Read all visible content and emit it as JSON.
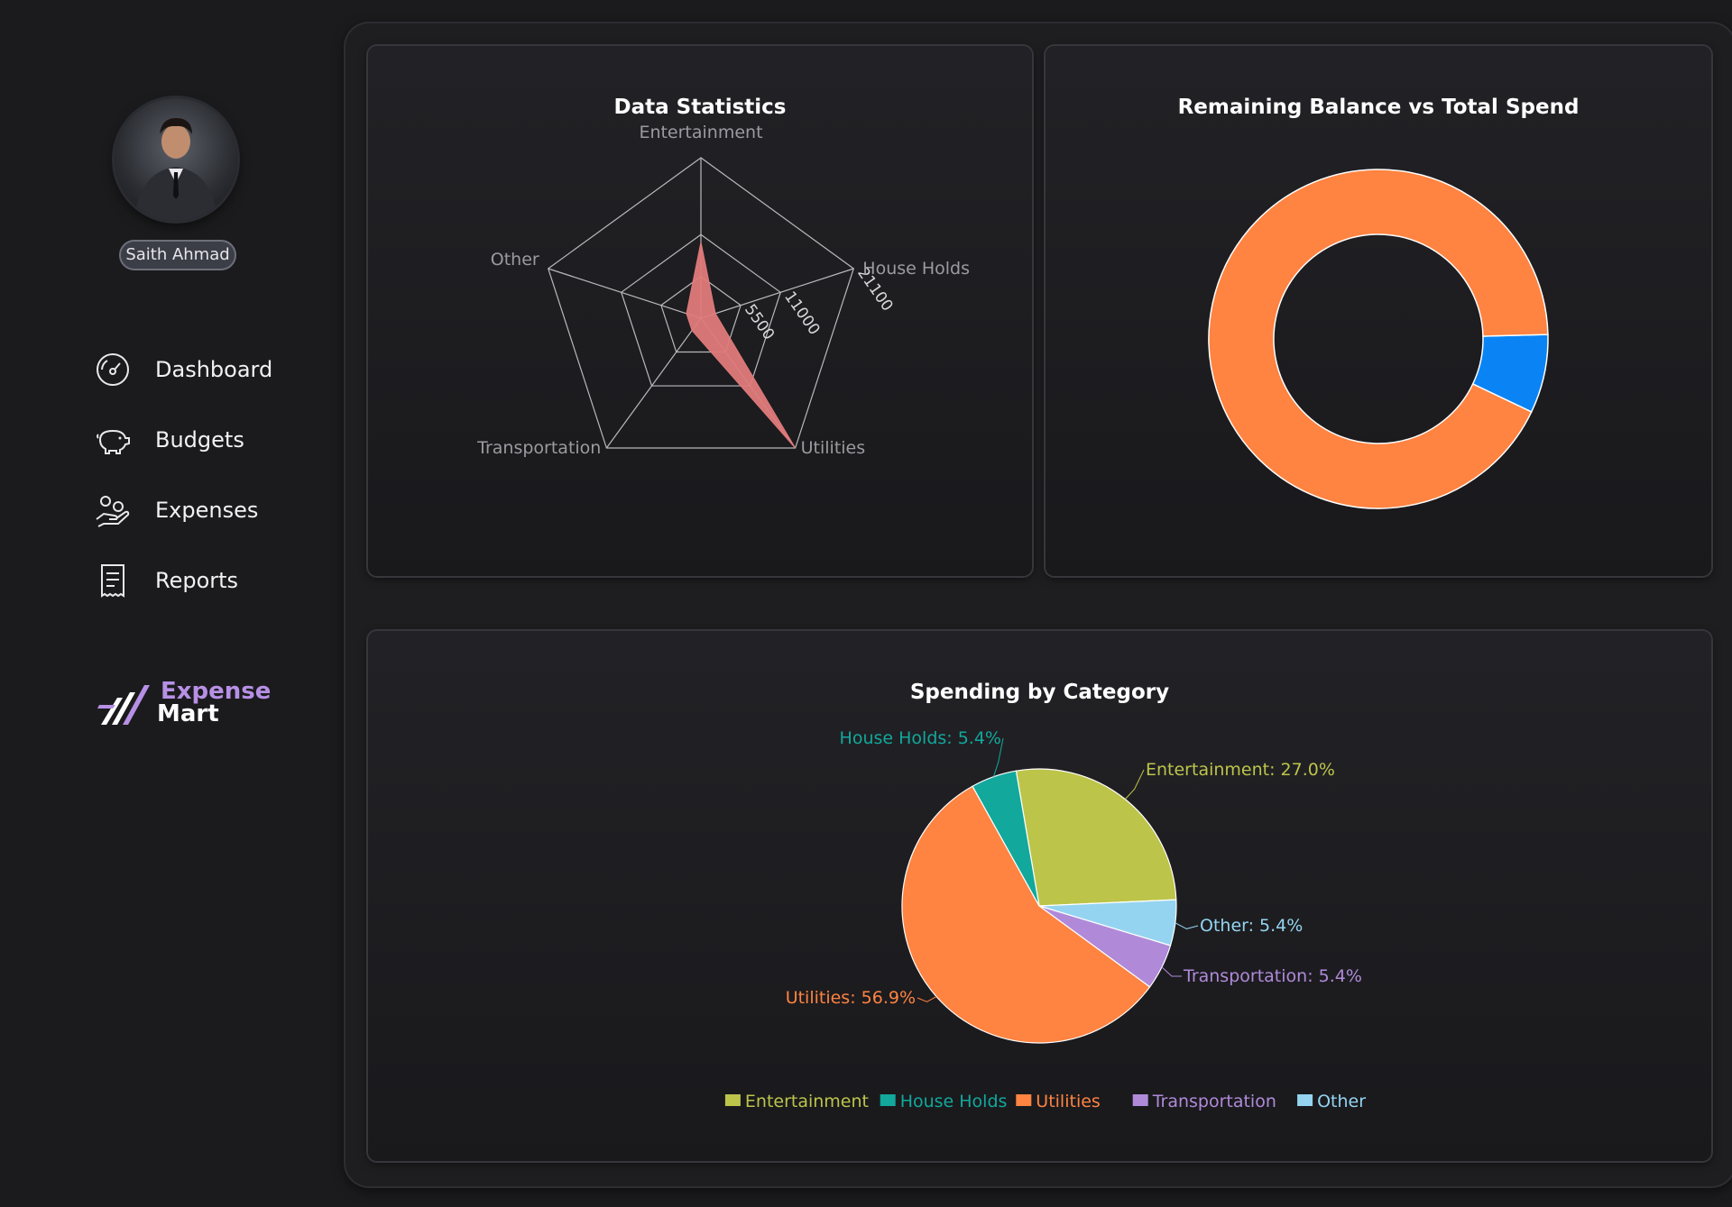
{
  "user": {
    "name": "Saith Ahmad"
  },
  "nav": [
    {
      "label": "Dashboard",
      "icon": "gauge-icon"
    },
    {
      "label": "Budgets",
      "icon": "piggy-bank-icon"
    },
    {
      "label": "Expenses",
      "icon": "hand-coins-icon"
    },
    {
      "label": "Reports",
      "icon": "receipt-icon"
    }
  ],
  "brand": {
    "line1": "Expense",
    "line2": "Mart"
  },
  "colors": {
    "entertainment": "#bdc44a",
    "house_holds": "#12a89c",
    "utilities": "#ff8341",
    "transportation": "#b08ad9",
    "other": "#94d4f1",
    "remaining": "#0a84f5",
    "radar_fill": "#e07a7a"
  },
  "cards": {
    "radar": {
      "title": "Data Statistics"
    },
    "donut": {
      "title": "Remaining Balance vs Total Spend"
    },
    "pie": {
      "title": "Spending by Category"
    }
  },
  "chart_data": [
    {
      "type": "radar",
      "title": "Data Statistics",
      "axes": [
        "Entertainment",
        "House Holds",
        "Utilities",
        "Transportation",
        "Other"
      ],
      "tick_labels": [
        "5500",
        "11000",
        "21100"
      ],
      "values": [
        10000,
        2000,
        21100,
        2000,
        2000
      ],
      "max": 21100
    },
    {
      "type": "pie",
      "variant": "donut",
      "title": "Remaining Balance vs Total Spend",
      "values": [
        {
          "name": "Total Spend",
          "value": 92.5,
          "color": "#ff8341"
        },
        {
          "name": "Remaining Balance",
          "value": 7.5,
          "color": "#0a84f5"
        }
      ]
    },
    {
      "type": "pie",
      "title": "Spending by Category",
      "slices": [
        {
          "name": "Entertainment",
          "label": "Entertainment: 27.0%",
          "value": 27.0,
          "color": "#bdc44a"
        },
        {
          "name": "Other",
          "label": "Other: 5.4%",
          "value": 5.4,
          "color": "#94d4f1"
        },
        {
          "name": "Transportation",
          "label": "Transportation: 5.4%",
          "value": 5.4,
          "color": "#b08ad9"
        },
        {
          "name": "Utilities",
          "label": "Utilities: 56.9%",
          "value": 56.9,
          "color": "#ff8341"
        },
        {
          "name": "House Holds",
          "label": "House Holds: 5.4%",
          "value": 5.4,
          "color": "#12a89c"
        }
      ],
      "legend": [
        "Entertainment",
        "House Holds",
        "Utilities",
        "Transportation",
        "Other"
      ],
      "legend_placement": "bottom"
    }
  ]
}
